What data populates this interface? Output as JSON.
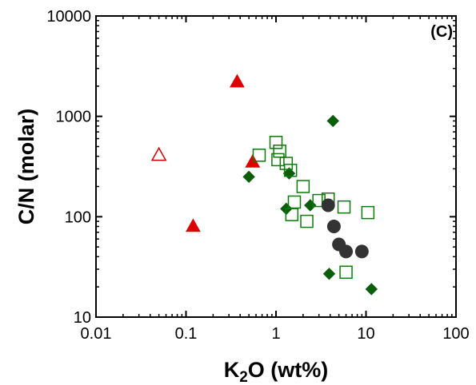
{
  "chart_data": {
    "type": "scatter",
    "panel_label": "(C)",
    "xlabel": {
      "prefix": "K",
      "sub": "2",
      "suffix": "O (wt%)"
    },
    "ylabel": "C/N (molar)",
    "xscale": "log",
    "yscale": "log",
    "xlim": [
      0.01,
      100
    ],
    "ylim": [
      10,
      10000
    ],
    "xticks": [
      {
        "value": 0.01,
        "label": "0.01"
      },
      {
        "value": 0.1,
        "label": "0.1"
      },
      {
        "value": 1,
        "label": "1"
      },
      {
        "value": 10,
        "label": "10"
      },
      {
        "value": 100,
        "label": "100"
      }
    ],
    "yticks": [
      {
        "value": 10,
        "label": "10"
      },
      {
        "value": 100,
        "label": "100"
      },
      {
        "value": 1000,
        "label": "1000"
      },
      {
        "value": 10000,
        "label": "10000"
      }
    ],
    "grid": false,
    "legend": "none",
    "series": [
      {
        "marker": "filled-triangle",
        "color": "#dd0000",
        "points": [
          [
            0.37,
            2200
          ],
          [
            0.55,
            350
          ],
          [
            0.12,
            80
          ]
        ]
      },
      {
        "marker": "open-triangle",
        "color": "#cc0000",
        "points": [
          [
            0.05,
            410
          ]
        ]
      },
      {
        "marker": "filled-diamond",
        "color": "#0a5e0a",
        "points": [
          [
            4.3,
            900
          ],
          [
            0.5,
            250
          ],
          [
            1.4,
            270
          ],
          [
            1.3,
            120
          ],
          [
            2.4,
            130
          ],
          [
            3.9,
            27
          ],
          [
            11.5,
            19
          ]
        ]
      },
      {
        "marker": "open-square",
        "color": "#0a7a0a",
        "points": [
          [
            0.65,
            410
          ],
          [
            1.0,
            550
          ],
          [
            1.1,
            450
          ],
          [
            1.05,
            370
          ],
          [
            1.3,
            340
          ],
          [
            1.45,
            290
          ],
          [
            2.0,
            200
          ],
          [
            1.6,
            140
          ],
          [
            1.5,
            105
          ],
          [
            2.2,
            90
          ],
          [
            3.0,
            145
          ],
          [
            3.8,
            150
          ],
          [
            5.7,
            125
          ],
          [
            10.5,
            110
          ],
          [
            6.0,
            28
          ]
        ]
      },
      {
        "marker": "filled-circle",
        "color": "#333333",
        "points": [
          [
            3.8,
            130
          ],
          [
            4.4,
            80
          ],
          [
            5.0,
            53
          ],
          [
            6.0,
            45
          ],
          [
            9.0,
            45
          ]
        ]
      }
    ]
  }
}
